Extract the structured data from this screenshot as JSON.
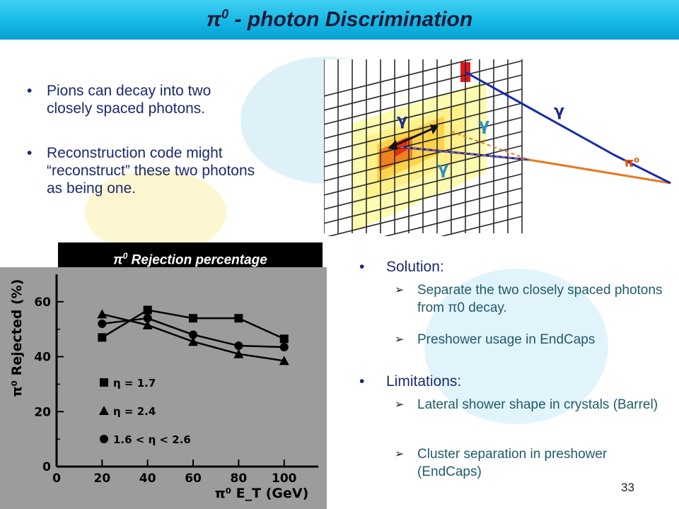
{
  "slide": {
    "title_main": "π",
    "title_sup": "0",
    "title_rest": " - photon Discrimination",
    "page_number": "33"
  },
  "bullets": [
    "Pions can decay into two closely spaced photons.",
    "Reconstruction code might “reconstruct” these two photons as being one."
  ],
  "solution": {
    "heading": "Solution:",
    "items": [
      "Separate the two closely spaced photons from π0 decay.",
      "Preshower usage in EndCaps"
    ]
  },
  "limitations": {
    "heading": "Limitations:",
    "items": [
      "Lateral shower shape in crystals (Barrel)",
      "Cluster separation in preshower (EndCaps)"
    ]
  },
  "diagram": {
    "labels": {
      "gamma": "γ",
      "pi0": "π⁰"
    }
  },
  "chart_data": {
    "type": "line",
    "title_main": "π",
    "title_sup": "0",
    "title_rest": " Rejection percentage",
    "xlabel": "π⁰ E_T (GeV)",
    "ylabel": "π⁰ Rejected (%)",
    "xlim": [
      0,
      115
    ],
    "ylim": [
      0,
      70
    ],
    "xticks": [
      0,
      20,
      40,
      60,
      80,
      100
    ],
    "yticks": [
      0,
      20,
      40,
      60
    ],
    "x": [
      20,
      40,
      60,
      80,
      100
    ],
    "series": [
      {
        "name": "η = 1.7",
        "marker": "square",
        "values": [
          47,
          57,
          54,
          54,
          46.5
        ]
      },
      {
        "name": "η = 2.4",
        "marker": "triangle",
        "values": [
          55.5,
          51.5,
          45.5,
          41,
          38.5
        ]
      },
      {
        "name": "1.6 < η < 2.6",
        "marker": "circle",
        "values": [
          52,
          54,
          48,
          44,
          43.5
        ]
      }
    ],
    "legend_position": "bottom-left",
    "colors": {
      "background": "#9c9c9c",
      "ink": "#000000"
    }
  }
}
